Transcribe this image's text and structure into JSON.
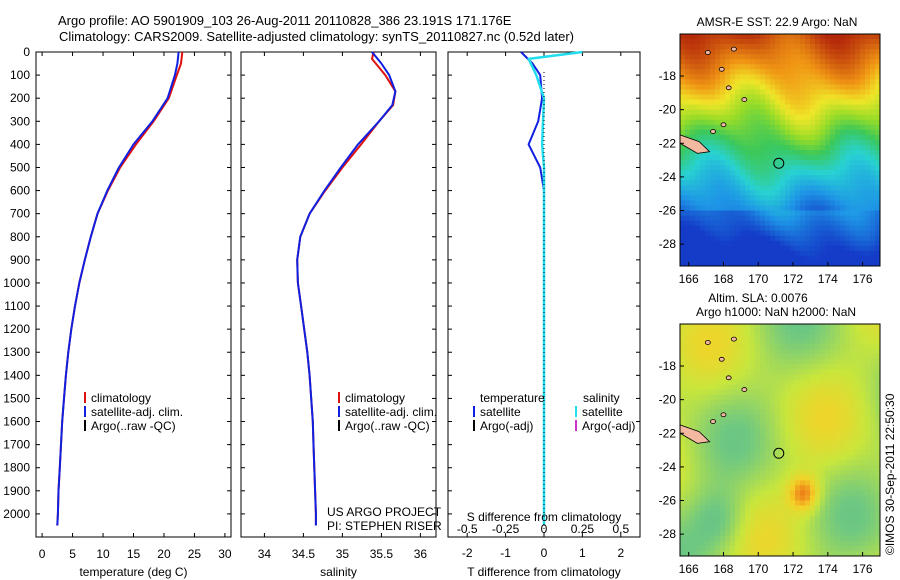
{
  "header": {
    "line1": "Argo profile: AO 5901909_103 26-Aug-2011 20110828_386 23.191S 171.176E",
    "line2": "Climatology: CARS2009. Satellite-adjusted climatology: synTS_20110827.nc (0.52d later)"
  },
  "project": {
    "line1": "US ARGO PROJECT",
    "line2": "PI: STEPHEN RISER"
  },
  "timestamp": "©IMOS 30-Sep-2011 22:50:30",
  "colors": {
    "climatology": "#e01010",
    "satellite": "#1020e0",
    "argo": "#000000",
    "satellite_salinity": "#22ddee",
    "argo_salinity": "#cc33cc"
  },
  "chart_data": [
    {
      "type": "line",
      "name": "temperature-profile",
      "xlabel": "temperature (deg C)",
      "ylabel": "",
      "xlim": [
        -1,
        31
      ],
      "ylim": [
        2100,
        0
      ],
      "xticks": [
        0,
        5,
        10,
        15,
        20,
        25,
        30
      ],
      "yticks": [
        0,
        100,
        200,
        300,
        400,
        500,
        600,
        700,
        800,
        900,
        1000,
        1100,
        1200,
        1300,
        1400,
        1500,
        1600,
        1700,
        1800,
        1900,
        2000
      ],
      "legend": {
        "position": "center-right",
        "entries": [
          "climatology",
          "satellite-adj. clim.",
          "Argo(..raw -QC)"
        ]
      },
      "series": [
        {
          "name": "climatology",
          "color": "#e01010",
          "points": [
            [
              23.0,
              0
            ],
            [
              22.8,
              50
            ],
            [
              22.1,
              100
            ],
            [
              20.8,
              200
            ],
            [
              18.3,
              300
            ],
            [
              15.4,
              400
            ],
            [
              12.8,
              500
            ],
            [
              10.8,
              600
            ],
            [
              9.1,
              700
            ],
            [
              8.0,
              800
            ],
            [
              7.0,
              900
            ],
            [
              6.1,
              1000
            ],
            [
              5.4,
              1100
            ],
            [
              4.8,
              1200
            ],
            [
              4.3,
              1300
            ],
            [
              3.9,
              1400
            ],
            [
              3.6,
              1500
            ],
            [
              3.3,
              1600
            ],
            [
              3.1,
              1700
            ],
            [
              2.9,
              1800
            ],
            [
              2.7,
              1900
            ],
            [
              2.6,
              2000
            ],
            [
              2.5,
              2050
            ]
          ]
        },
        {
          "name": "satellite-adj. clim.",
          "color": "#1020e0",
          "points": [
            [
              22.4,
              0
            ],
            [
              22.2,
              50
            ],
            [
              21.8,
              100
            ],
            [
              20.6,
              200
            ],
            [
              18.1,
              300
            ],
            [
              15.0,
              400
            ],
            [
              12.6,
              500
            ],
            [
              10.7,
              600
            ],
            [
              9.1,
              700
            ],
            [
              8.0,
              800
            ],
            [
              7.0,
              900
            ],
            [
              6.1,
              1000
            ],
            [
              5.4,
              1100
            ],
            [
              4.8,
              1200
            ],
            [
              4.3,
              1300
            ],
            [
              3.9,
              1400
            ],
            [
              3.6,
              1500
            ],
            [
              3.3,
              1600
            ],
            [
              3.1,
              1700
            ],
            [
              2.9,
              1800
            ],
            [
              2.7,
              1900
            ],
            [
              2.6,
              2000
            ],
            [
              2.5,
              2050
            ]
          ]
        }
      ]
    },
    {
      "type": "line",
      "name": "salinity-profile",
      "xlabel": "salinity",
      "ylabel": "",
      "xlim": [
        33.7,
        36.2
      ],
      "ylim": [
        2100,
        0
      ],
      "xticks": [
        34,
        34.5,
        35,
        35.5,
        36
      ],
      "legend": {
        "position": "center-right",
        "entries": [
          "climatology",
          "satellite-adj. clim.",
          "Argo(..raw -QC)"
        ]
      },
      "series": [
        {
          "name": "climatology",
          "color": "#e01010",
          "points": [
            [
              35.4,
              0
            ],
            [
              35.38,
              30
            ],
            [
              35.55,
              100
            ],
            [
              35.68,
              170
            ],
            [
              35.65,
              230
            ],
            [
              35.47,
              300
            ],
            [
              35.24,
              400
            ],
            [
              35.0,
              500
            ],
            [
              34.78,
              600
            ],
            [
              34.58,
              700
            ],
            [
              34.46,
              800
            ],
            [
              34.42,
              900
            ],
            [
              34.43,
              1000
            ],
            [
              34.47,
              1100
            ],
            [
              34.51,
              1200
            ],
            [
              34.55,
              1300
            ],
            [
              34.58,
              1400
            ],
            [
              34.6,
              1500
            ],
            [
              34.62,
              1600
            ],
            [
              34.63,
              1700
            ],
            [
              34.64,
              1800
            ],
            [
              34.65,
              1900
            ],
            [
              34.66,
              2000
            ],
            [
              34.66,
              2050
            ]
          ]
        },
        {
          "name": "satellite-adj. clim.",
          "color": "#1020e0",
          "points": [
            [
              35.38,
              0
            ],
            [
              35.5,
              50
            ],
            [
              35.6,
              100
            ],
            [
              35.68,
              170
            ],
            [
              35.64,
              230
            ],
            [
              35.47,
              300
            ],
            [
              35.2,
              400
            ],
            [
              34.98,
              500
            ],
            [
              34.77,
              600
            ],
            [
              34.58,
              700
            ],
            [
              34.46,
              800
            ],
            [
              34.42,
              900
            ],
            [
              34.43,
              1000
            ],
            [
              34.47,
              1100
            ],
            [
              34.51,
              1200
            ],
            [
              34.55,
              1300
            ],
            [
              34.58,
              1400
            ],
            [
              34.6,
              1500
            ],
            [
              34.62,
              1600
            ],
            [
              34.63,
              1700
            ],
            [
              34.64,
              1800
            ],
            [
              34.65,
              1900
            ],
            [
              34.66,
              2000
            ],
            [
              34.66,
              2050
            ]
          ]
        }
      ]
    },
    {
      "type": "line",
      "name": "difference-profile",
      "xlabel": "T difference from climatology",
      "xlabel2": "S difference from climatology",
      "xlim": [
        -2.5,
        2.5
      ],
      "ylim": [
        2100,
        0
      ],
      "xticks": [
        -2,
        -1,
        0,
        1,
        2
      ],
      "xticks2": [
        -0.5,
        -0.25,
        0,
        0.25,
        0.5
      ],
      "xticklabels2": [
        "-0.5",
        "-0.25",
        "0",
        "0.25",
        "0.5"
      ],
      "legend": {
        "position": "center",
        "headers": [
          "temperature",
          "salinity"
        ],
        "temperature_entries": [
          "satellite",
          "Argo(-adj)"
        ],
        "salinity_entries": [
          "satellite",
          "Argo(-adj)"
        ]
      },
      "series": [
        {
          "name": "temperature satellite",
          "color": "#1020e0",
          "points": [
            [
              -0.6,
              0
            ],
            [
              -0.3,
              50
            ],
            [
              -0.1,
              100
            ],
            [
              -0.05,
              200
            ],
            [
              -0.15,
              300
            ],
            [
              -0.4,
              400
            ],
            [
              -0.1,
              500
            ],
            [
              0.0,
              600
            ],
            [
              0.0,
              800
            ],
            [
              0.0,
              1000
            ],
            [
              0.0,
              1400
            ],
            [
              0.0,
              1800
            ],
            [
              0.0,
              2050
            ]
          ]
        },
        {
          "name": "salinity satellite",
          "color": "#22ddee",
          "points": [
            [
              1.0,
              0
            ],
            [
              -0.4,
              30
            ],
            [
              -0.2,
              100
            ],
            [
              0.0,
              200
            ],
            [
              -0.05,
              400
            ],
            [
              0.0,
              500
            ],
            [
              0.0,
              800
            ],
            [
              0.0,
              1200
            ],
            [
              0.0,
              1600
            ],
            [
              0.0,
              2050
            ]
          ]
        }
      ]
    },
    {
      "type": "heatmap",
      "name": "sst-map",
      "title": "AMSR-E SST: 22.9 Argo: NaN",
      "xlim": [
        165.5,
        177
      ],
      "ylim": [
        -29.3,
        -15.5
      ],
      "xticks": [
        166,
        168,
        170,
        172,
        174,
        176
      ],
      "yticks": [
        -18,
        -20,
        -22,
        -24,
        -26,
        -28
      ],
      "marker": [
        171.18,
        -23.19
      ]
    },
    {
      "type": "heatmap",
      "name": "sla-map",
      "title": "Altim. SLA: 0.0076",
      "title2": "Argo h1000: NaN h2000: NaN",
      "xlim": [
        165.5,
        177
      ],
      "ylim": [
        -29.3,
        -15.5
      ],
      "xticks": [
        166,
        168,
        170,
        172,
        174,
        176
      ],
      "yticks": [
        -18,
        -20,
        -22,
        -24,
        -26,
        -28
      ],
      "marker": [
        171.18,
        -23.19
      ]
    }
  ]
}
